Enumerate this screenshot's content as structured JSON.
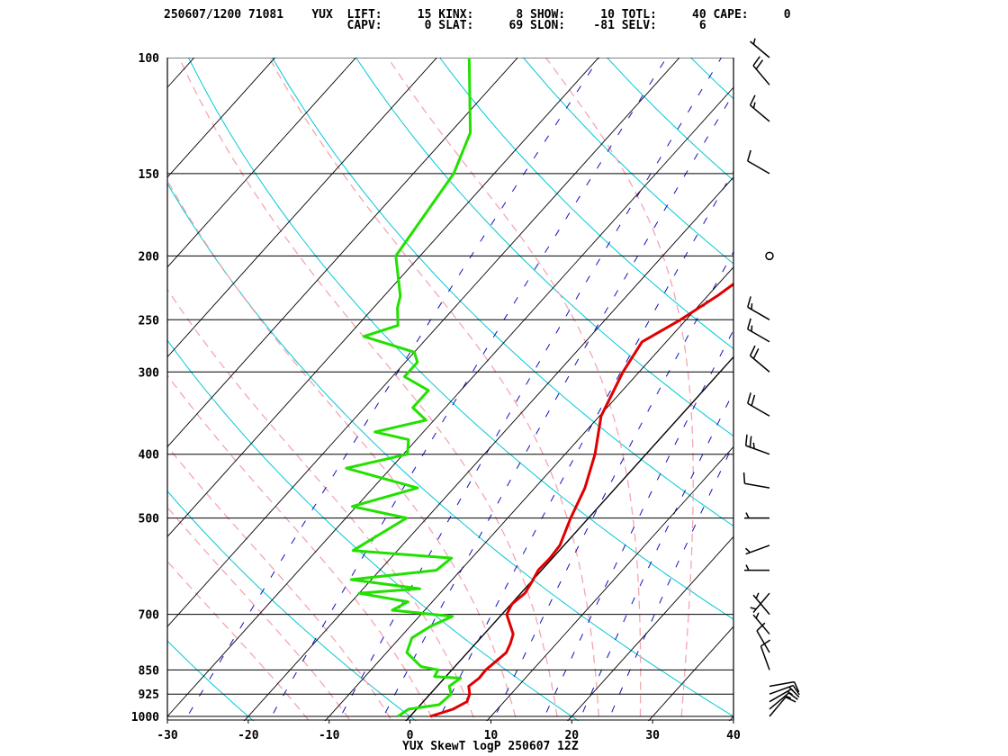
{
  "header": {
    "line1": "250607/1200 71081    YUX  LIFT:     15 KINX:      8 SHOW:     10 TOTL:     40 CAPE:     0",
    "line2": "                          CAPV:      0 SLAT:     69 SLON:    -81 SELV:      6"
  },
  "footer": {
    "caption": "YUX SkewT logP 250607 12Z"
  },
  "colors": {
    "isotherm": "#000000",
    "isobar": "#000000",
    "dry_adiabat": "#00c8d8",
    "moist_adiabat": "#f4a6b0",
    "mixing_ratio": "#1010c0",
    "temperature": "#e00000",
    "dewpoint": "#22e000",
    "wind_barb": "#000000"
  },
  "chart_data": {
    "type": "line",
    "title": "YUX SkewT logP 250607 12Z",
    "xlabel": "",
    "ylabel": "",
    "xlim": [
      -30,
      40
    ],
    "ylim": [
      1000,
      100
    ],
    "y_scale": "log (inverted)",
    "x_ticks": [
      -30,
      -20,
      -10,
      0,
      10,
      20,
      30,
      40
    ],
    "x_tick_labels": [
      "-30",
      "-20",
      "-10",
      "0",
      "10",
      "20",
      "30",
      "40"
    ],
    "pressure_levels": [
      100,
      150,
      200,
      250,
      300,
      400,
      500,
      700,
      850,
      925,
      1000
    ],
    "pressure_labels": [
      "100",
      "150",
      "200",
      "250",
      "300",
      "400",
      "500",
      "700",
      "850",
      "925",
      "1000"
    ],
    "grid": true,
    "series": [
      {
        "key": "temperature",
        "points": [
          [
            1000,
            2.5
          ],
          [
            975,
            4.5
          ],
          [
            950,
            5.4
          ],
          [
            925,
            4.9
          ],
          [
            900,
            3.9
          ],
          [
            875,
            4.3
          ],
          [
            850,
            4.2
          ],
          [
            800,
            4.8
          ],
          [
            775,
            4.3
          ],
          [
            750,
            3.6
          ],
          [
            700,
            0.6
          ],
          [
            675,
            0.1
          ],
          [
            650,
            0.5
          ],
          [
            625,
            0.1
          ],
          [
            600,
            -0.4
          ],
          [
            575,
            -0.3
          ],
          [
            550,
            -0.5
          ],
          [
            500,
            -2.2
          ],
          [
            450,
            -3.8
          ],
          [
            400,
            -6.3
          ],
          [
            350,
            -9.8
          ],
          [
            300,
            -12.0
          ],
          [
            270,
            -13.0
          ],
          [
            250,
            -10.7
          ],
          [
            230,
            -8.8
          ],
          [
            200,
            -6.5
          ],
          [
            175,
            -7.2
          ],
          [
            150,
            -9.4
          ],
          [
            130,
            -11.6
          ],
          [
            110,
            -12.2
          ],
          [
            100,
            -13.3
          ]
        ]
      },
      {
        "key": "dewpoint",
        "points": [
          [
            1000,
            -1.5
          ],
          [
            975,
            -1.0
          ],
          [
            960,
            2.3
          ],
          [
            925,
            2.6
          ],
          [
            900,
            1.5
          ],
          [
            875,
            2.0
          ],
          [
            870,
            -1.4
          ],
          [
            850,
            -1.7
          ],
          [
            840,
            -4.2
          ],
          [
            800,
            -7.5
          ],
          [
            760,
            -8.5
          ],
          [
            730,
            -7.5
          ],
          [
            705,
            -5.9
          ],
          [
            690,
            -14.0
          ],
          [
            670,
            -13.0
          ],
          [
            650,
            -20.0
          ],
          [
            640,
            -13.0
          ],
          [
            620,
            -22.5
          ],
          [
            600,
            -13.0
          ],
          [
            575,
            -12.5
          ],
          [
            560,
            -25.5
          ],
          [
            500,
            -22.5
          ],
          [
            480,
            -30.5
          ],
          [
            450,
            -24.5
          ],
          [
            420,
            -35.5
          ],
          [
            400,
            -29.5
          ],
          [
            380,
            -31.0
          ],
          [
            370,
            -36.0
          ],
          [
            355,
            -31.0
          ],
          [
            340,
            -34.0
          ],
          [
            320,
            -34.0
          ],
          [
            305,
            -38.5
          ],
          [
            290,
            -38.5
          ],
          [
            280,
            -40.0
          ],
          [
            265,
            -48.0
          ],
          [
            255,
            -45.0
          ],
          [
            240,
            -47.0
          ],
          [
            230,
            -48.0
          ],
          [
            200,
            -53.0
          ],
          [
            150,
            -55.0
          ],
          [
            130,
            -57.5
          ],
          [
            100,
            -66.0
          ]
        ]
      }
    ],
    "wind": [
      {
        "p": 1000,
        "dir": 40,
        "spd": 10
      },
      {
        "p": 975,
        "dir": 50,
        "spd": 15
      },
      {
        "p": 950,
        "dir": 60,
        "spd": 15
      },
      {
        "p": 925,
        "dir": 70,
        "spd": 15
      },
      {
        "p": 900,
        "dir": 80,
        "spd": 10
      },
      {
        "p": 850,
        "dir": 340,
        "spd": 10
      },
      {
        "p": 800,
        "dir": 330,
        "spd": 10
      },
      {
        "p": 750,
        "dir": 320,
        "spd": 5
      },
      {
        "p": 700,
        "dir": 320,
        "spd": 5
      },
      {
        "p": 650,
        "dir": 220,
        "spd": 5
      },
      {
        "p": 600,
        "dir": 270,
        "spd": 5
      },
      {
        "p": 550,
        "dir": 250,
        "spd": 5
      },
      {
        "p": 500,
        "dir": 270,
        "spd": 5
      },
      {
        "p": 450,
        "dir": 280,
        "spd": 10
      },
      {
        "p": 400,
        "dir": 290,
        "spd": 25
      },
      {
        "p": 350,
        "dir": 300,
        "spd": 20
      },
      {
        "p": 300,
        "dir": 310,
        "spd": 20
      },
      {
        "p": 270,
        "dir": 300,
        "spd": 15
      },
      {
        "p": 250,
        "dir": 300,
        "spd": 15
      },
      {
        "p": 200,
        "dir": 0,
        "spd": 0
      },
      {
        "p": 150,
        "dir": 300,
        "spd": 10
      },
      {
        "p": 125,
        "dir": 310,
        "spd": 15
      },
      {
        "p": 110,
        "dir": 320,
        "spd": 20
      },
      {
        "p": 100,
        "dir": 310,
        "spd": 5
      }
    ]
  }
}
